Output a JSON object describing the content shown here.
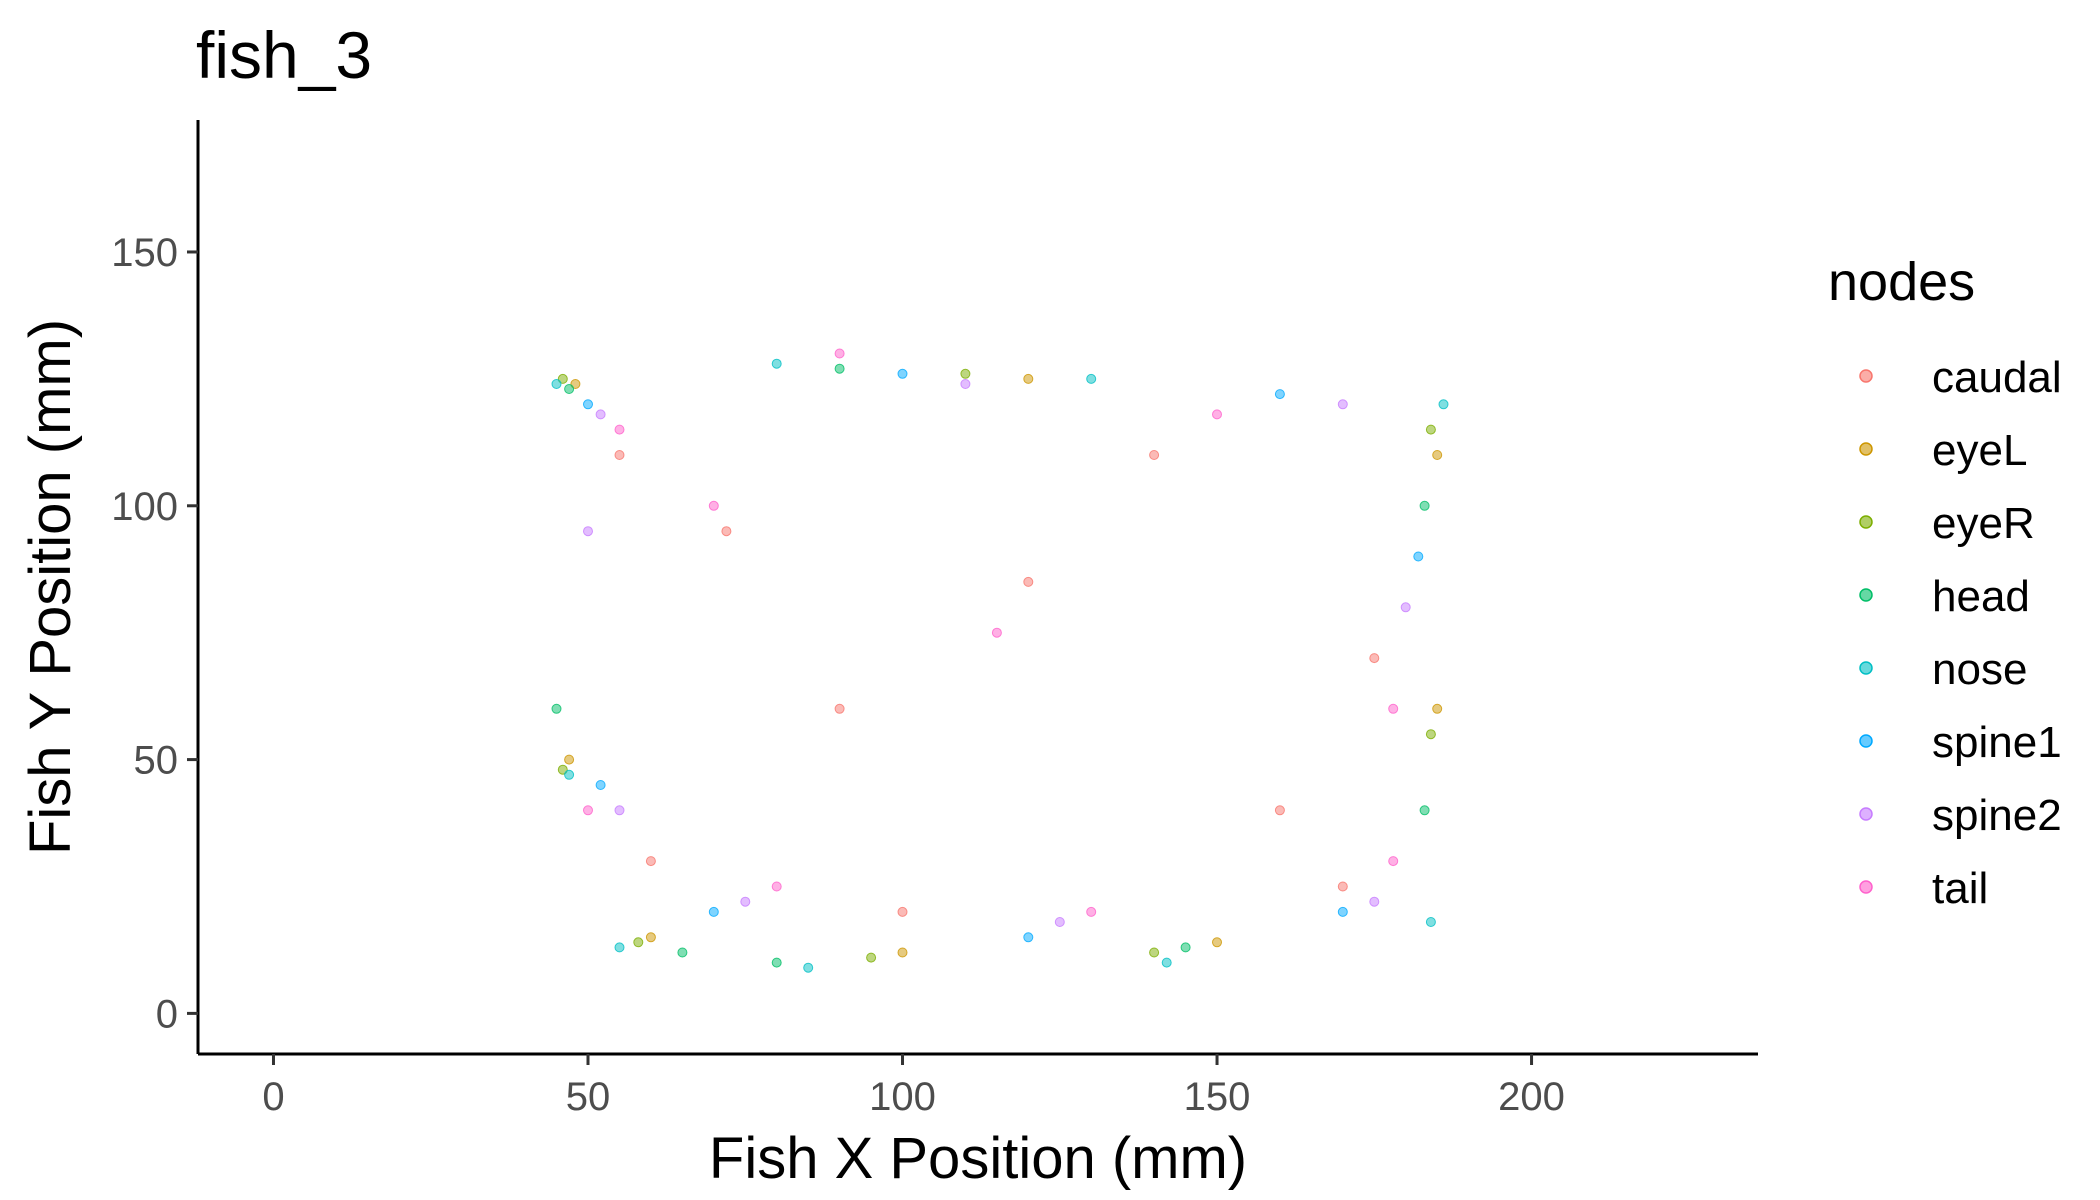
{
  "chart_data": {
    "type": "scatter",
    "title": "fish_3",
    "xlabel": "Fish X Position (mm)",
    "ylabel": "Fish Y Position (mm)",
    "xlim": [
      -12,
      236
    ],
    "ylim": [
      -8,
      176
    ],
    "x_ticks": [
      0,
      50,
      100,
      150,
      200
    ],
    "y_ticks": [
      0,
      50,
      100,
      150
    ],
    "grid": false,
    "legend_title": "nodes",
    "legend_position": "right",
    "point_opacity": 0.5,
    "series": [
      {
        "name": "caudal",
        "color": "#F8766D",
        "points": [
          [
            55,
            110
          ],
          [
            72,
            95
          ],
          [
            90,
            60
          ],
          [
            120,
            85
          ],
          [
            160,
            40
          ],
          [
            175,
            70
          ],
          [
            60,
            30
          ],
          [
            140,
            110
          ],
          [
            100,
            20
          ],
          [
            170,
            25
          ]
        ]
      },
      {
        "name": "eyeL",
        "color": "#CD9600",
        "points": [
          [
            48,
            124
          ],
          [
            120,
            125
          ],
          [
            150,
            14
          ],
          [
            185,
            110
          ],
          [
            60,
            15
          ],
          [
            100,
            12
          ],
          [
            185,
            60
          ],
          [
            47,
            50
          ]
        ]
      },
      {
        "name": "eyeR",
        "color": "#7CAE00",
        "points": [
          [
            46,
            125
          ],
          [
            110,
            126
          ],
          [
            140,
            12
          ],
          [
            184,
            115
          ],
          [
            58,
            14
          ],
          [
            95,
            11
          ],
          [
            184,
            55
          ],
          [
            46,
            48
          ]
        ]
      },
      {
        "name": "head",
        "color": "#00BE67",
        "points": [
          [
            47,
            123
          ],
          [
            90,
            127
          ],
          [
            145,
            13
          ],
          [
            183,
            100
          ],
          [
            65,
            12
          ],
          [
            80,
            10
          ],
          [
            183,
            40
          ],
          [
            45,
            60
          ]
        ]
      },
      {
        "name": "nose",
        "color": "#00BFC4",
        "points": [
          [
            45,
            124
          ],
          [
            80,
            128
          ],
          [
            130,
            125
          ],
          [
            186,
            120
          ],
          [
            55,
            13
          ],
          [
            85,
            9
          ],
          [
            142,
            10
          ],
          [
            184,
            18
          ],
          [
            47,
            47
          ]
        ]
      },
      {
        "name": "spine1",
        "color": "#00A9FF",
        "points": [
          [
            50,
            120
          ],
          [
            100,
            126
          ],
          [
            160,
            122
          ],
          [
            182,
            90
          ],
          [
            70,
            20
          ],
          [
            120,
            15
          ],
          [
            170,
            20
          ],
          [
            52,
            45
          ]
        ]
      },
      {
        "name": "spine2",
        "color": "#C77CFF",
        "points": [
          [
            52,
            118
          ],
          [
            110,
            124
          ],
          [
            170,
            120
          ],
          [
            180,
            80
          ],
          [
            75,
            22
          ],
          [
            125,
            18
          ],
          [
            175,
            22
          ],
          [
            55,
            40
          ],
          [
            50,
            95
          ]
        ]
      },
      {
        "name": "tail",
        "color": "#FF61CC",
        "points": [
          [
            55,
            115
          ],
          [
            90,
            130
          ],
          [
            150,
            118
          ],
          [
            178,
            60
          ],
          [
            80,
            25
          ],
          [
            130,
            20
          ],
          [
            178,
            30
          ],
          [
            50,
            40
          ],
          [
            115,
            75
          ],
          [
            70,
            100
          ]
        ]
      }
    ]
  }
}
